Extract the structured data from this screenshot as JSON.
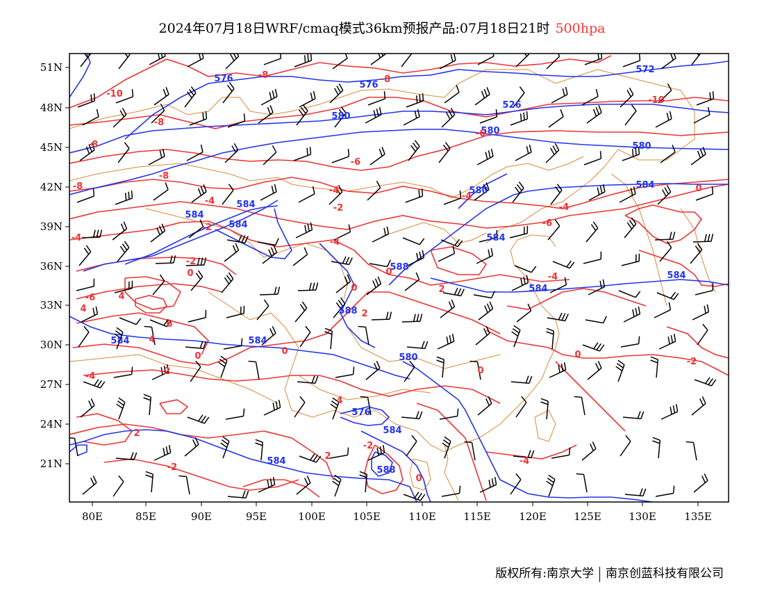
{
  "title": {
    "text": "2024年07月18日WRF/cmaq模式36km预报产品:07月18日21时",
    "level": "500hpa"
  },
  "colors": {
    "height_contour": "#2233ee",
    "temperature_contour": "#ee3333",
    "border": "#d9883a",
    "wind_barb": "#000000",
    "level_text": "#ff3333"
  },
  "axes": {
    "lon_labels": [
      "80E",
      "85E",
      "90E",
      "95E",
      "100E",
      "105E",
      "110E",
      "115E",
      "120E",
      "125E",
      "130E",
      "135E"
    ],
    "lat_labels": [
      "51N",
      "48N",
      "45N",
      "42N",
      "39N",
      "36N",
      "33N",
      "30N",
      "27N",
      "24N",
      "21N"
    ]
  },
  "height_labels": [
    "576",
    "576",
    "580",
    "572",
    "526",
    "580",
    "580",
    "584",
    "580",
    "584",
    "584",
    "584",
    "584",
    "588",
    "584",
    "584",
    "588",
    "584",
    "584",
    "580",
    "576",
    "584",
    "588",
    "584"
  ],
  "temperature_labels": [
    "-10",
    "-8",
    "-8",
    "-8",
    "-8",
    "-8",
    "-10",
    "-8",
    "-6",
    "-6",
    "-4",
    "-4",
    "-2",
    "-2",
    "-4",
    "-4",
    "-6",
    "-4",
    "-4",
    "-2",
    "0",
    "0",
    "-4",
    "0",
    "2",
    "4",
    "-6",
    "4",
    "6",
    "4",
    "0",
    "-2",
    "0",
    "2",
    "0",
    "0",
    "-2",
    "-4",
    "4",
    "-2",
    "-4",
    "-2",
    "2",
    "0",
    "0",
    "2"
  ],
  "footer": {
    "copyright": "版权所有:南京大学",
    "company": "南京创蓝科技有限公司"
  }
}
